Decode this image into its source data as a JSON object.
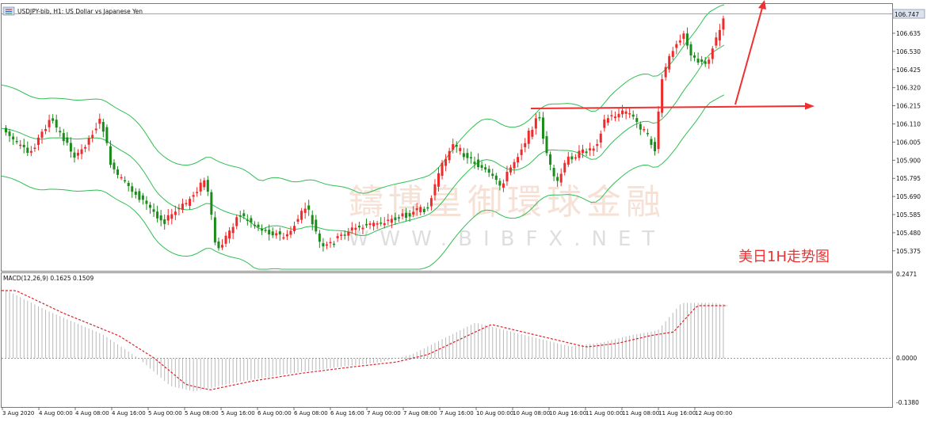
{
  "window": {
    "symbol_line": "USDJPY-bib, H1:  US Dollar vs Japanese Yen"
  },
  "colors": {
    "bull": "#ef2a2a",
    "bear": "#1a8c1a",
    "bands": "#2fbf52",
    "signal": "#e0202a",
    "hist": "#b8b8b8",
    "arrow": "#f03030",
    "price_tag_bg": "#dde3ee",
    "watermark": "#f0c9b5"
  },
  "price_axis": {
    "labels": [
      "106.635",
      "106.530",
      "106.425",
      "106.320",
      "106.215",
      "106.110",
      "106.005",
      "105.900",
      "105.795",
      "105.690",
      "105.585",
      "105.480",
      "105.375"
    ],
    "current_price": "106.747"
  },
  "macd": {
    "label": "MACD(12,26,9) 0.1625 0.1509",
    "axis_labels": [
      "0.2471",
      "0.0000",
      "-0.1380"
    ],
    "hist_count": 200
  },
  "time_axis": {
    "labels": [
      "3 Aug 2020",
      "4 Aug 00:00",
      "4 Aug 08:00",
      "4 Aug 16:00",
      "5 Aug 00:00",
      "5 Aug 08:00",
      "5 Aug 16:00",
      "6 Aug 00:00",
      "6 Aug 08:00",
      "6 Aug 16:00",
      "7 Aug 00:00",
      "7 Aug 08:00",
      "7 Aug 16:00",
      "10 Aug 00:00",
      "10 Aug 08:00",
      "10 Aug 16:00",
      "11 Aug 00:00",
      "11 Aug 08:00",
      "11 Aug 16:00",
      "12 Aug 00:00"
    ]
  },
  "watermark": {
    "cn": "鑄博皇御環球金融",
    "en": "WWW.BIBFX.NET"
  },
  "annotation": {
    "text": "美日1H走势图"
  }
}
